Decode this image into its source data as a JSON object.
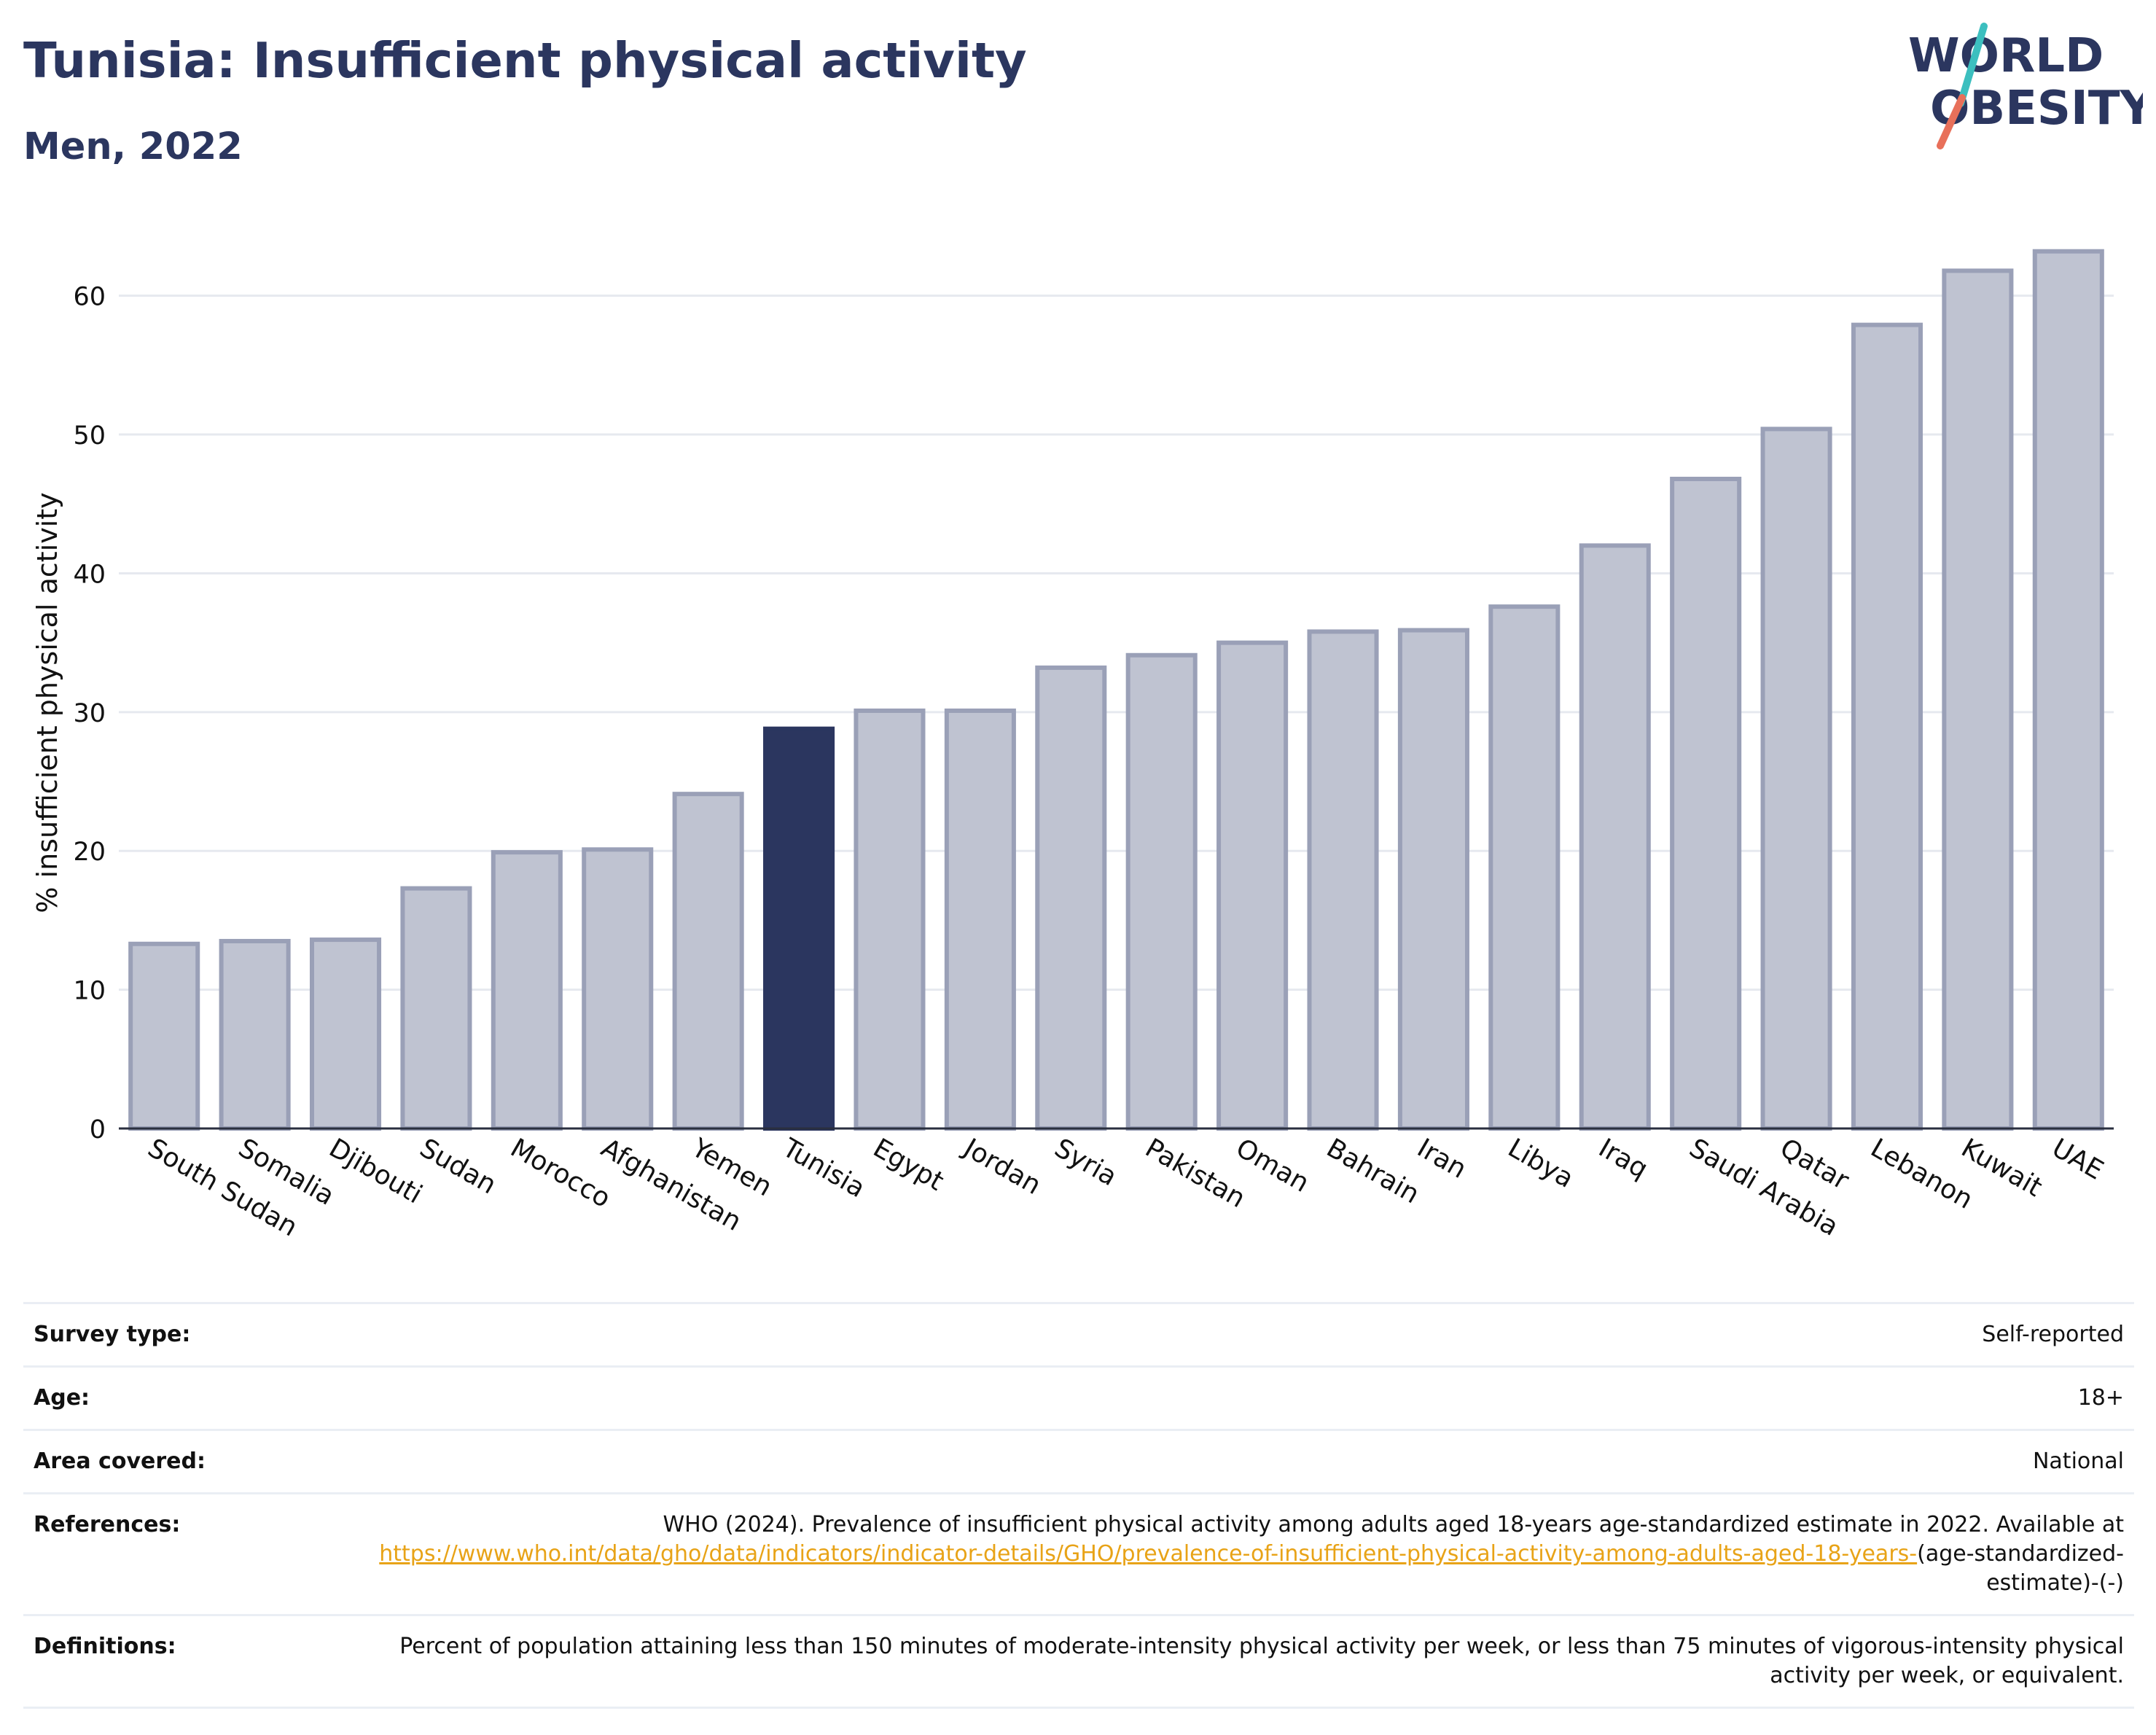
{
  "header": {
    "title": "Tunisia: Insufficient physical activity",
    "subtitle": "Men, 2022"
  },
  "logo": {
    "line1": "WORLD",
    "line2": "OBESITY",
    "colors": {
      "text": "#2b365f",
      "slash_teal": "#3cbfbf",
      "slash_coral": "#e8705a"
    }
  },
  "colors": {
    "highlight": "#2b365f",
    "bar_fill": "#bfc3d1",
    "bar_outline": "#9aa0b7",
    "text": "#2b365f"
  },
  "chart_data": {
    "type": "bar",
    "title": "Tunisia: Insufficient physical activity",
    "subtitle": "Men, 2022",
    "ylabel": "% insufficient physical activity",
    "xlabel": "",
    "ylim": [
      0,
      64.5
    ],
    "yticks": [
      0,
      10,
      20,
      30,
      40,
      50,
      60
    ],
    "grid": true,
    "highlight": "Tunisia",
    "categories": [
      "South Sudan",
      "Somalia",
      "Djibouti",
      "Sudan",
      "Morocco",
      "Afghanistan",
      "Yemen",
      "Tunisia",
      "Egypt",
      "Jordan",
      "Syria",
      "Pakistan",
      "Oman",
      "Bahrain",
      "Iran",
      "Libya",
      "Iraq",
      "Saudi Arabia",
      "Qatar",
      "Lebanon",
      "Kuwait",
      "UAE"
    ],
    "values": [
      13.3,
      13.5,
      13.6,
      17.3,
      19.9,
      20.1,
      24.1,
      28.8,
      30.1,
      30.1,
      33.2,
      34.1,
      35.0,
      35.8,
      35.9,
      37.6,
      42.0,
      46.8,
      50.4,
      57.9,
      61.8,
      63.2
    ]
  },
  "info": {
    "survey_type": {
      "label": "Survey type:",
      "value": "Self-reported"
    },
    "age": {
      "label": "Age:",
      "value": "18+"
    },
    "area": {
      "label": "Area covered:",
      "value": "National"
    },
    "references": {
      "label": "References:",
      "text": "WHO (2024). Prevalence of insufficient physical activity among adults aged 18-years age-standardized estimate in 2022. Available at",
      "link": "https://www.who.int/data/gho/data/indicators/indicator-details/GHO/prevalence-of-insufficient-physical-activity-among-adults-aged-18-years-",
      "suffix": "(age-standardized-estimate)-(-)"
    },
    "definitions": {
      "label": "Definitions:",
      "value": "Percent of population attaining less than 150 minutes of moderate-intensity physical activity per week, or less than 75 minutes of vigorous-intensity physical activity per week, or equivalent."
    }
  }
}
